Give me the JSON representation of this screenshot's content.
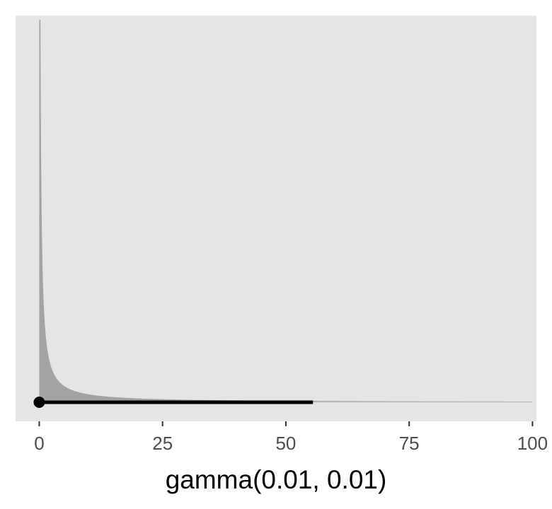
{
  "chart_data": {
    "type": "area",
    "title": "",
    "xlabel": "gamma(0.01, 0.01)",
    "ylabel": "",
    "xlim": [
      -4.8,
      100.8
    ],
    "x_ticks": [
      0,
      25,
      50,
      75,
      100
    ],
    "x_tick_labels": [
      "0",
      "25",
      "50",
      "75",
      "100"
    ],
    "y_axis_shown": false,
    "grid": false,
    "legend": "none",
    "distribution": {
      "family": "gamma",
      "shape": 0.01,
      "rate": 0.01,
      "density_x_range": [
        0,
        100
      ]
    },
    "interval": {
      "point": 0,
      "lower": 0,
      "upper": 55.5
    },
    "colors": {
      "panel_background": "#e5e5e5",
      "density_fill": "#a3a3a3",
      "density_outline": "#8a8a8a",
      "interval": "#000000",
      "tick_label": "#4d4d4d",
      "axis_tick": "#333333"
    }
  }
}
